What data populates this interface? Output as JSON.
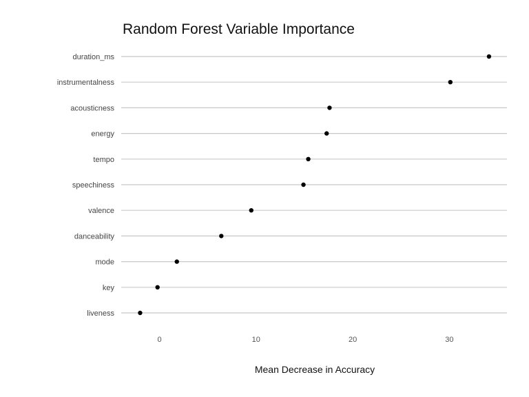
{
  "chart_data": {
    "type": "scatter",
    "title": "Random Forest Variable Importance",
    "xlabel": "Mean Decrease in Accuracy",
    "ylabel": "",
    "categories": [
      "duration_ms",
      "instrumentalness",
      "acousticness",
      "energy",
      "tempo",
      "speechiness",
      "valence",
      "danceability",
      "mode",
      "key",
      "liveness"
    ],
    "values": [
      34.1,
      30.1,
      17.6,
      17.3,
      15.4,
      14.9,
      9.5,
      6.4,
      1.8,
      -0.2,
      -2.0
    ],
    "xlim": [
      -4,
      36
    ],
    "xticks": [
      0,
      10,
      20,
      30
    ],
    "grid": "horizontal lines per category",
    "legend": "none",
    "point_color": "#000000",
    "grid_color": "#c8c8c8"
  }
}
